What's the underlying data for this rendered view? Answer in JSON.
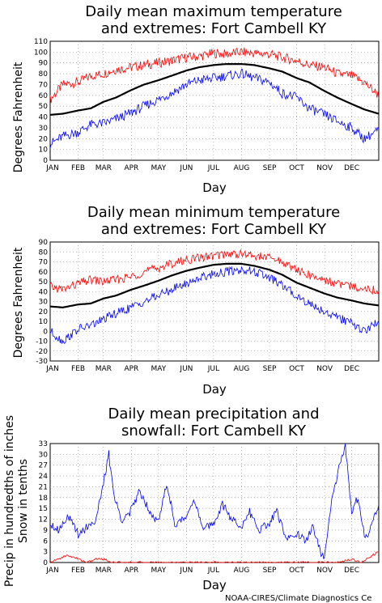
{
  "chart_data": [
    {
      "type": "line",
      "title_lines": [
        "Daily mean maximum temperature",
        "and extremes: Fort Cambell KY"
      ],
      "xlabel": "Day",
      "ylabel": "Degrees Fahrenheit",
      "ylim": [
        0,
        110
      ],
      "yticks": [
        0,
        10,
        20,
        30,
        40,
        50,
        60,
        70,
        80,
        90,
        100,
        110
      ],
      "month_labels": [
        "JAN",
        "FEB",
        "MAR",
        "APR",
        "MAY",
        "JUN",
        "JUL",
        "AUG",
        "SEP",
        "OCT",
        "NOV",
        "DEC"
      ],
      "grid": true,
      "series": [
        {
          "color": "#ff0000",
          "x": [
            1,
            15,
            32,
            46,
            60,
            74,
            91,
            105,
            121,
            135,
            152,
            166,
            182,
            196,
            213,
            227,
            244,
            258,
            274,
            288,
            305,
            319,
            335,
            349,
            365
          ],
          "values": [
            56,
            70,
            72,
            78,
            80,
            84,
            86,
            88,
            90,
            92,
            95,
            96,
            99,
            98,
            100,
            99,
            98,
            95,
            92,
            88,
            86,
            80,
            78,
            72,
            60
          ]
        },
        {
          "color": "#000000",
          "x": [
            1,
            15,
            32,
            46,
            60,
            74,
            91,
            105,
            121,
            135,
            152,
            166,
            182,
            196,
            213,
            227,
            244,
            258,
            274,
            288,
            305,
            319,
            335,
            349,
            365
          ],
          "values": [
            42,
            43,
            46,
            48,
            54,
            58,
            65,
            70,
            74,
            78,
            83,
            86,
            88,
            89,
            89,
            88,
            85,
            82,
            76,
            72,
            64,
            58,
            52,
            47,
            43
          ]
        },
        {
          "color": "#0000ff",
          "x": [
            1,
            15,
            32,
            46,
            60,
            74,
            91,
            105,
            121,
            135,
            152,
            166,
            182,
            196,
            213,
            227,
            244,
            258,
            274,
            288,
            305,
            319,
            335,
            349,
            365
          ],
          "values": [
            15,
            22,
            26,
            33,
            34,
            38,
            44,
            50,
            56,
            62,
            70,
            74,
            76,
            78,
            80,
            76,
            72,
            62,
            58,
            48,
            42,
            36,
            30,
            20,
            28
          ]
        }
      ]
    },
    {
      "type": "line",
      "title_lines": [
        "Daily mean minimum temperature",
        "and extremes: Fort Cambell KY"
      ],
      "xlabel": "Day",
      "ylabel": "Degrees Fahrenheit",
      "ylim": [
        -30,
        90
      ],
      "yticks": [
        -30,
        -20,
        -10,
        0,
        10,
        20,
        30,
        40,
        50,
        60,
        70,
        80,
        90
      ],
      "month_labels": [
        "JAN",
        "FEB",
        "MAR",
        "APR",
        "MAY",
        "JUN",
        "JUL",
        "AUG",
        "SEP",
        "OCT",
        "NOV",
        "DEC"
      ],
      "grid": true,
      "series": [
        {
          "color": "#ff0000",
          "x": [
            1,
            15,
            32,
            46,
            60,
            74,
            91,
            105,
            121,
            135,
            152,
            166,
            182,
            196,
            213,
            227,
            244,
            258,
            274,
            288,
            305,
            319,
            335,
            349,
            365
          ],
          "values": [
            45,
            42,
            48,
            52,
            50,
            52,
            55,
            60,
            64,
            68,
            72,
            74,
            76,
            78,
            78,
            76,
            74,
            70,
            62,
            56,
            52,
            48,
            45,
            44,
            40
          ]
        },
        {
          "color": "#000000",
          "x": [
            1,
            15,
            32,
            46,
            60,
            74,
            91,
            105,
            121,
            135,
            152,
            166,
            182,
            196,
            213,
            227,
            244,
            258,
            274,
            288,
            305,
            319,
            335,
            349,
            365
          ],
          "values": [
            25,
            24,
            27,
            28,
            33,
            36,
            42,
            46,
            51,
            56,
            61,
            64,
            67,
            68,
            68,
            66,
            62,
            57,
            49,
            44,
            38,
            34,
            31,
            28,
            26
          ]
        },
        {
          "color": "#0000ff",
          "x": [
            1,
            15,
            32,
            46,
            60,
            74,
            91,
            105,
            121,
            135,
            152,
            166,
            182,
            196,
            213,
            227,
            244,
            258,
            274,
            288,
            305,
            319,
            335,
            349,
            365
          ],
          "values": [
            0,
            -10,
            2,
            6,
            12,
            18,
            24,
            30,
            36,
            42,
            48,
            54,
            58,
            60,
            62,
            60,
            54,
            46,
            36,
            28,
            20,
            14,
            8,
            0,
            10
          ]
        }
      ]
    },
    {
      "type": "line",
      "title_lines": [
        "Daily mean precipitation and",
        "snowfall: Fort Cambell KY"
      ],
      "xlabel": "Day",
      "ylabel_lines": [
        "Precip in hundredths of inches",
        "Snow in tenths"
      ],
      "ylim": [
        0,
        33
      ],
      "yticks": [
        0,
        3,
        6,
        9,
        12,
        15,
        18,
        21,
        24,
        27,
        30,
        33
      ],
      "month_labels": [
        "JAN",
        "FEB",
        "MAR",
        "APR",
        "MAY",
        "JUN",
        "JUL",
        "AUG",
        "SEP",
        "OCT",
        "NOV",
        "DEC"
      ],
      "grid": true,
      "series": [
        {
          "color": "#0000ff",
          "x": [
            1,
            10,
            20,
            32,
            42,
            52,
            60,
            66,
            72,
            80,
            90,
            100,
            110,
            121,
            130,
            140,
            152,
            160,
            170,
            182,
            192,
            202,
            213,
            222,
            232,
            244,
            252,
            262,
            274,
            284,
            292,
            300,
            305,
            312,
            320,
            328,
            335,
            342,
            350,
            358,
            365
          ],
          "values": [
            11,
            9,
            13,
            8,
            10,
            12,
            22,
            30,
            18,
            12,
            14,
            20,
            15,
            11,
            22,
            10,
            13,
            18,
            9,
            11,
            16,
            12,
            10,
            14,
            9,
            11,
            14,
            7,
            8,
            6,
            10,
            3,
            1,
            16,
            25,
            33,
            14,
            18,
            6,
            12,
            16
          ]
        },
        {
          "color": "#ff0000",
          "x": [
            1,
            10,
            20,
            32,
            42,
            52,
            60,
            70,
            80,
            90,
            100,
            121,
            152,
            182,
            213,
            244,
            274,
            305,
            320,
            335,
            345,
            352,
            358,
            365
          ],
          "values": [
            0,
            1,
            2,
            1,
            0,
            1,
            1,
            0,
            0,
            0,
            0,
            0,
            0,
            0,
            0,
            0,
            0,
            0,
            0,
            1,
            0,
            1,
            2,
            3
          ]
        }
      ]
    }
  ],
  "credit": "NOAA-CIRES/Climate Diagnostics Ce"
}
